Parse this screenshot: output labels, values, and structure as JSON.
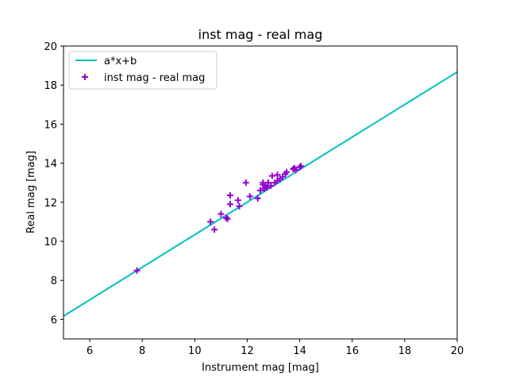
{
  "chart_data": {
    "type": "scatter",
    "title": "inst mag - real mag",
    "xlabel": "Instrument mag [mag]",
    "ylabel": "Real mag [mag]",
    "xlim": [
      5,
      20
    ],
    "ylim": [
      5,
      20
    ],
    "xticks": [
      6,
      8,
      10,
      12,
      14,
      16,
      18,
      20
    ],
    "yticks": [
      6,
      8,
      10,
      12,
      14,
      16,
      18,
      20
    ],
    "grid": false,
    "legend_position": "upper-left",
    "fit_line": {
      "name": "a*x+b",
      "color": "#00bfbf",
      "x": [
        5,
        20
      ],
      "y": [
        6.17,
        18.67
      ]
    },
    "series": [
      {
        "name": "inst mag - real mag",
        "color": "#9400d3",
        "marker": "plus",
        "points": [
          [
            7.8,
            8.5
          ],
          [
            10.6,
            11.0
          ],
          [
            10.75,
            10.6
          ],
          [
            11.0,
            11.4
          ],
          [
            11.2,
            11.2
          ],
          [
            11.25,
            11.15
          ],
          [
            11.35,
            11.9
          ],
          [
            11.35,
            12.35
          ],
          [
            11.65,
            12.1
          ],
          [
            11.7,
            11.8
          ],
          [
            11.95,
            13.0
          ],
          [
            12.1,
            12.3
          ],
          [
            12.4,
            12.2
          ],
          [
            12.5,
            12.6
          ],
          [
            12.6,
            12.9
          ],
          [
            12.6,
            13.0
          ],
          [
            12.65,
            12.7
          ],
          [
            12.7,
            12.8
          ],
          [
            12.75,
            12.75
          ],
          [
            12.8,
            13.0
          ],
          [
            12.9,
            12.85
          ],
          [
            12.95,
            13.35
          ],
          [
            13.05,
            13.0
          ],
          [
            13.15,
            13.1
          ],
          [
            13.15,
            13.4
          ],
          [
            13.25,
            13.2
          ],
          [
            13.35,
            13.3
          ],
          [
            13.45,
            13.45
          ],
          [
            13.5,
            13.55
          ],
          [
            13.75,
            13.7
          ],
          [
            13.8,
            13.75
          ],
          [
            13.85,
            13.65
          ],
          [
            14.0,
            13.8
          ],
          [
            14.05,
            13.85
          ]
        ]
      }
    ]
  }
}
